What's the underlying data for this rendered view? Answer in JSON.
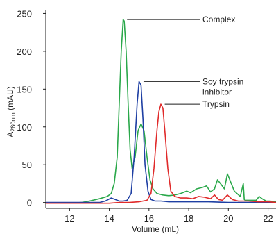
{
  "chart_data": {
    "type": "line",
    "title": "",
    "xlabel": "Volume (mL)",
    "ylabel": {
      "main": "A",
      "sub": "280nm",
      "unit": " (mAU)"
    },
    "xlim": [
      10.8,
      22.4
    ],
    "ylim": [
      -4,
      255
    ],
    "x_ticks": [
      12,
      14,
      16,
      18,
      20,
      22
    ],
    "y_ticks": [
      0,
      50,
      100,
      150,
      200,
      250
    ],
    "grid": false,
    "legend": "none",
    "series": [
      {
        "name": "Complex",
        "color": "#2aa84a",
        "x": [
          10.8,
          12.0,
          12.6,
          13.0,
          13.5,
          13.9,
          14.1,
          14.25,
          14.4,
          14.5,
          14.6,
          14.7,
          14.75,
          14.85,
          14.95,
          15.05,
          15.15,
          15.3,
          15.45,
          15.6,
          15.75,
          15.9,
          16.05,
          16.2,
          16.4,
          16.7,
          17.0,
          17.3,
          17.6,
          17.9,
          18.1,
          18.4,
          18.7,
          18.9,
          19.1,
          19.3,
          19.45,
          19.6,
          19.8,
          19.95,
          20.1,
          20.3,
          20.6,
          20.75,
          20.8,
          20.85,
          21.0,
          21.2,
          21.4,
          21.55,
          21.7,
          21.9,
          22.1,
          22.4
        ],
        "y": [
          -1,
          -1,
          0,
          2,
          5,
          8,
          12,
          25,
          60,
          130,
          200,
          242,
          240,
          200,
          130,
          70,
          45,
          60,
          95,
          104,
          95,
          60,
          30,
          18,
          12,
          10,
          9,
          10,
          12,
          15,
          13,
          18,
          20,
          22,
          14,
          18,
          30,
          25,
          18,
          38,
          28,
          15,
          8,
          25,
          4,
          3,
          3,
          3,
          3,
          8,
          5,
          2,
          2,
          1
        ]
      },
      {
        "name": "Soy trypsin inhibitor",
        "color": "#1e3fa3",
        "x": [
          10.8,
          12.5,
          13.5,
          13.8,
          14.1,
          14.3,
          14.5,
          14.7,
          14.9,
          15.1,
          15.25,
          15.4,
          15.5,
          15.6,
          15.7,
          15.8,
          15.95,
          16.1,
          16.3,
          16.6,
          17.0,
          17.6,
          18.2,
          19.0,
          20.0,
          21.0,
          22.4
        ],
        "y": [
          0,
          0,
          0,
          2,
          6,
          4,
          2,
          2,
          3,
          12,
          60,
          130,
          160,
          155,
          110,
          50,
          15,
          4,
          2,
          2,
          1,
          1,
          1,
          1,
          0,
          0,
          0
        ]
      },
      {
        "name": "Trypsin",
        "color": "#e02a2a",
        "x": [
          10.8,
          12.0,
          13.0,
          14.0,
          14.5,
          15.0,
          15.5,
          15.9,
          16.1,
          16.25,
          16.4,
          16.5,
          16.6,
          16.7,
          16.8,
          16.95,
          17.1,
          17.3,
          17.6,
          17.9,
          18.2,
          18.5,
          18.8,
          19.1,
          19.3,
          19.5,
          19.7,
          19.95,
          20.2,
          20.5,
          21.0,
          21.5,
          22.0,
          22.4
        ],
        "y": [
          -1,
          -1,
          -1,
          -1,
          0,
          0,
          1,
          3,
          12,
          45,
          95,
          120,
          130,
          125,
          95,
          45,
          15,
          8,
          6,
          6,
          5,
          8,
          7,
          5,
          10,
          4,
          3,
          10,
          4,
          2,
          2,
          1,
          1,
          0
        ]
      }
    ],
    "annotations": [
      {
        "text": "Complex",
        "series": "Complex",
        "x": 14.72,
        "y": 242
      },
      {
        "text": "Soy trypsin",
        "text_line2": "inhibitor",
        "series": "Soy trypsin inhibitor",
        "x": 15.55,
        "y": 160
      },
      {
        "text": "Trypsin",
        "series": "Trypsin",
        "x": 16.62,
        "y": 130
      }
    ]
  }
}
